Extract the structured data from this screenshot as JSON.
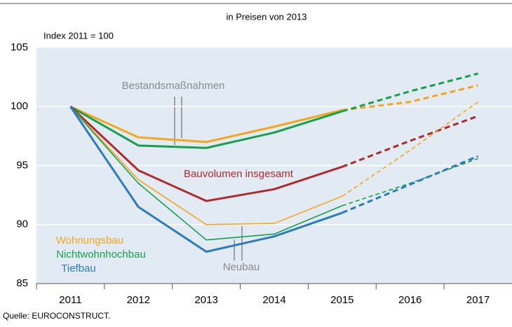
{
  "chart_data": {
    "type": "line",
    "title": "in Preisen von 2013",
    "y_label": "Index 2011 = 100",
    "source": "Quelle: EUROCONSTRUCT.",
    "categories": [
      "2011",
      "2012",
      "2013",
      "2014",
      "2015",
      "2016",
      "2017"
    ],
    "dashed_after": "2015",
    "ylim": [
      85,
      105
    ],
    "yticks": [
      85,
      90,
      95,
      100,
      105
    ],
    "grid": true,
    "series": [
      {
        "color": "#f5a519",
        "style": "bold",
        "values": [
          100,
          97.4,
          97.0,
          98.3,
          99.7,
          100.4,
          101.8
        ]
      },
      {
        "color": "#16a04b",
        "style": "bold",
        "values": [
          100,
          96.7,
          96.5,
          97.8,
          99.6,
          101.3,
          102.8
        ]
      },
      {
        "color": "#b02a2d",
        "style": "bold",
        "values": [
          100,
          94.6,
          92.0,
          93.0,
          94.9,
          97.1,
          99.2
        ]
      },
      {
        "color": "#f5a519",
        "style": "thin",
        "values": [
          100,
          93.8,
          90.0,
          90.1,
          92.4,
          96.3,
          100.4
        ]
      },
      {
        "color": "#16a04b",
        "style": "thin",
        "values": [
          100,
          93.5,
          88.7,
          89.2,
          91.6,
          93.5,
          95.6
        ]
      },
      {
        "color": "#2d7bbf",
        "style": "bold",
        "values": [
          100,
          91.5,
          87.7,
          89.0,
          91.0,
          93.4,
          95.8
        ]
      }
    ],
    "annotations": [
      {
        "text": "Bestandsmaßnahmen",
        "color": "#8a8a8a"
      },
      {
        "text": "Bauvolumen insgesamt",
        "color": "#b02a2d"
      },
      {
        "text": "Neubau",
        "color": "#8a8a8a"
      },
      {
        "text": "Wohnungsbau",
        "color": "#f5a519"
      },
      {
        "text": "Nichtwohnhochbau",
        "color": "#16a04b"
      },
      {
        "text": "Tiefbau",
        "color": "#2d7bbf"
      }
    ]
  }
}
